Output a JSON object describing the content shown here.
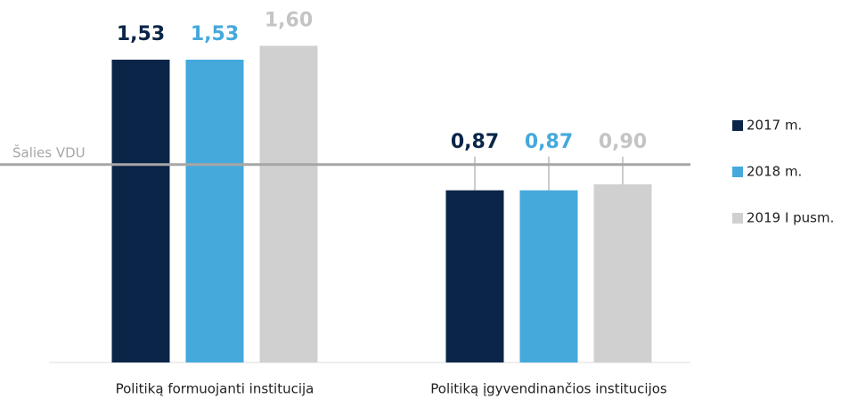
{
  "chart_data": {
    "type": "bar",
    "categories": [
      "Politiką formuojanti institucija",
      "Politiką įgyvendinančios institucijos"
    ],
    "series": [
      {
        "name": "2017 m.",
        "color": "#0b2548",
        "values": [
          1.53,
          0.87
        ],
        "value_labels": [
          "1,53",
          "0,87"
        ]
      },
      {
        "name": "2018 m.",
        "color": "#45a9dc",
        "values": [
          1.53,
          0.87
        ],
        "value_labels": [
          "1,53",
          "0,87"
        ]
      },
      {
        "name": "2019 I pusm.",
        "color": "#d0d0d0",
        "values": [
          1.6,
          0.9
        ],
        "value_labels": [
          "1,60",
          "0,90"
        ]
      }
    ],
    "ylim": [
      0,
      1.8
    ],
    "reference_line": {
      "value": 1,
      "label": "Šalies VDU"
    },
    "legend": "right"
  }
}
